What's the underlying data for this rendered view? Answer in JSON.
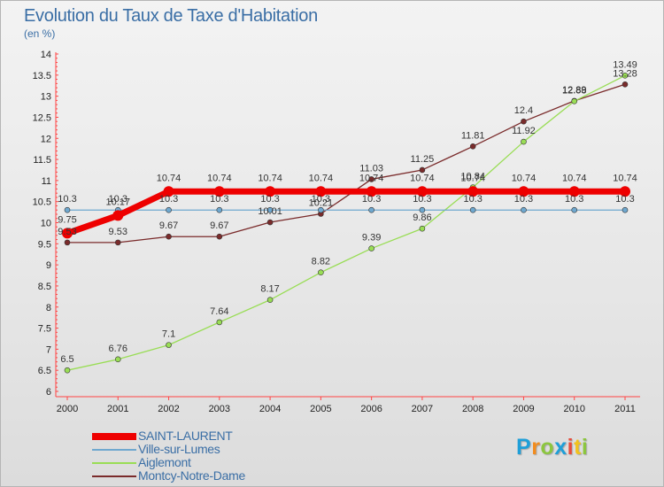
{
  "header": {
    "title": "Evolution du Taux de Taxe d'Habitation",
    "subtitle": "(en %)"
  },
  "chart_data": {
    "type": "line",
    "categories": [
      "2000",
      "2001",
      "2002",
      "2003",
      "2004",
      "2005",
      "2006",
      "2007",
      "2008",
      "2009",
      "2010",
      "2011"
    ],
    "ylim": [
      6,
      14
    ],
    "yticks": [
      "6",
      "6.5",
      "7",
      "7.5",
      "8",
      "8.5",
      "9",
      "9.5",
      "10",
      "10.5",
      "11",
      "11.5",
      "12",
      "12.5",
      "13",
      "13.5",
      "14"
    ],
    "grid": false,
    "legend_position": "bottom-left",
    "series": [
      {
        "name": "SAINT-LAURENT",
        "color": "#ee0000",
        "values": [
          9.75,
          10.17,
          10.74,
          10.74,
          10.74,
          10.74,
          10.74,
          10.74,
          10.74,
          10.74,
          10.74,
          10.74
        ],
        "labels": [
          "9.75",
          "10.17",
          "10.74",
          "10.74",
          "10.74",
          "10.74",
          "10.74",
          "10.74",
          "10.74",
          "10.74",
          "10.74",
          "10.74"
        ]
      },
      {
        "name": "Ville-sur-Lumes",
        "color": "#6fa8cf",
        "values": [
          10.3,
          10.3,
          10.3,
          10.3,
          10.3,
          10.3,
          10.3,
          10.3,
          10.3,
          10.3,
          10.3,
          10.3
        ],
        "labels": [
          "10.3",
          "10.3",
          "10.3",
          "10.3",
          "10.3",
          "10.3",
          "10.3",
          "10.3",
          "10.3",
          "10.3",
          "10.3",
          "10.3"
        ]
      },
      {
        "name": "Aiglemont",
        "color": "#99dd55",
        "values": [
          6.5,
          6.76,
          7.1,
          7.64,
          8.17,
          8.82,
          9.39,
          9.86,
          10.84,
          11.92,
          12.88,
          13.49
        ],
        "labels": [
          "6.5",
          "6.76",
          "7.1",
          "7.64",
          "8.17",
          "8.82",
          "9.39",
          "9.86",
          "10.84",
          "11.92",
          "12.88",
          "13.49"
        ]
      },
      {
        "name": "Montcy-Notre-Dame",
        "color": "#7a2b2b",
        "values": [
          9.53,
          9.53,
          9.67,
          9.67,
          10.01,
          10.21,
          11.03,
          11.25,
          11.81,
          12.4,
          12.89,
          13.28
        ],
        "labels": [
          "9.53",
          "9.53",
          "9.67",
          "9.67",
          "10.01",
          "10.21",
          "11.03",
          "11.25",
          "11.81",
          "12.4",
          "12.89",
          "13.28"
        ]
      }
    ]
  },
  "logo": {
    "letters": [
      "P",
      "r",
      "o",
      "x",
      "i",
      "t",
      "i"
    ],
    "colors": [
      "#1f9fd8",
      "#f28c1e",
      "#8cc63f",
      "#1f9fd8",
      "#e74c3c",
      "#f2c21e",
      "#8cc63f"
    ]
  }
}
